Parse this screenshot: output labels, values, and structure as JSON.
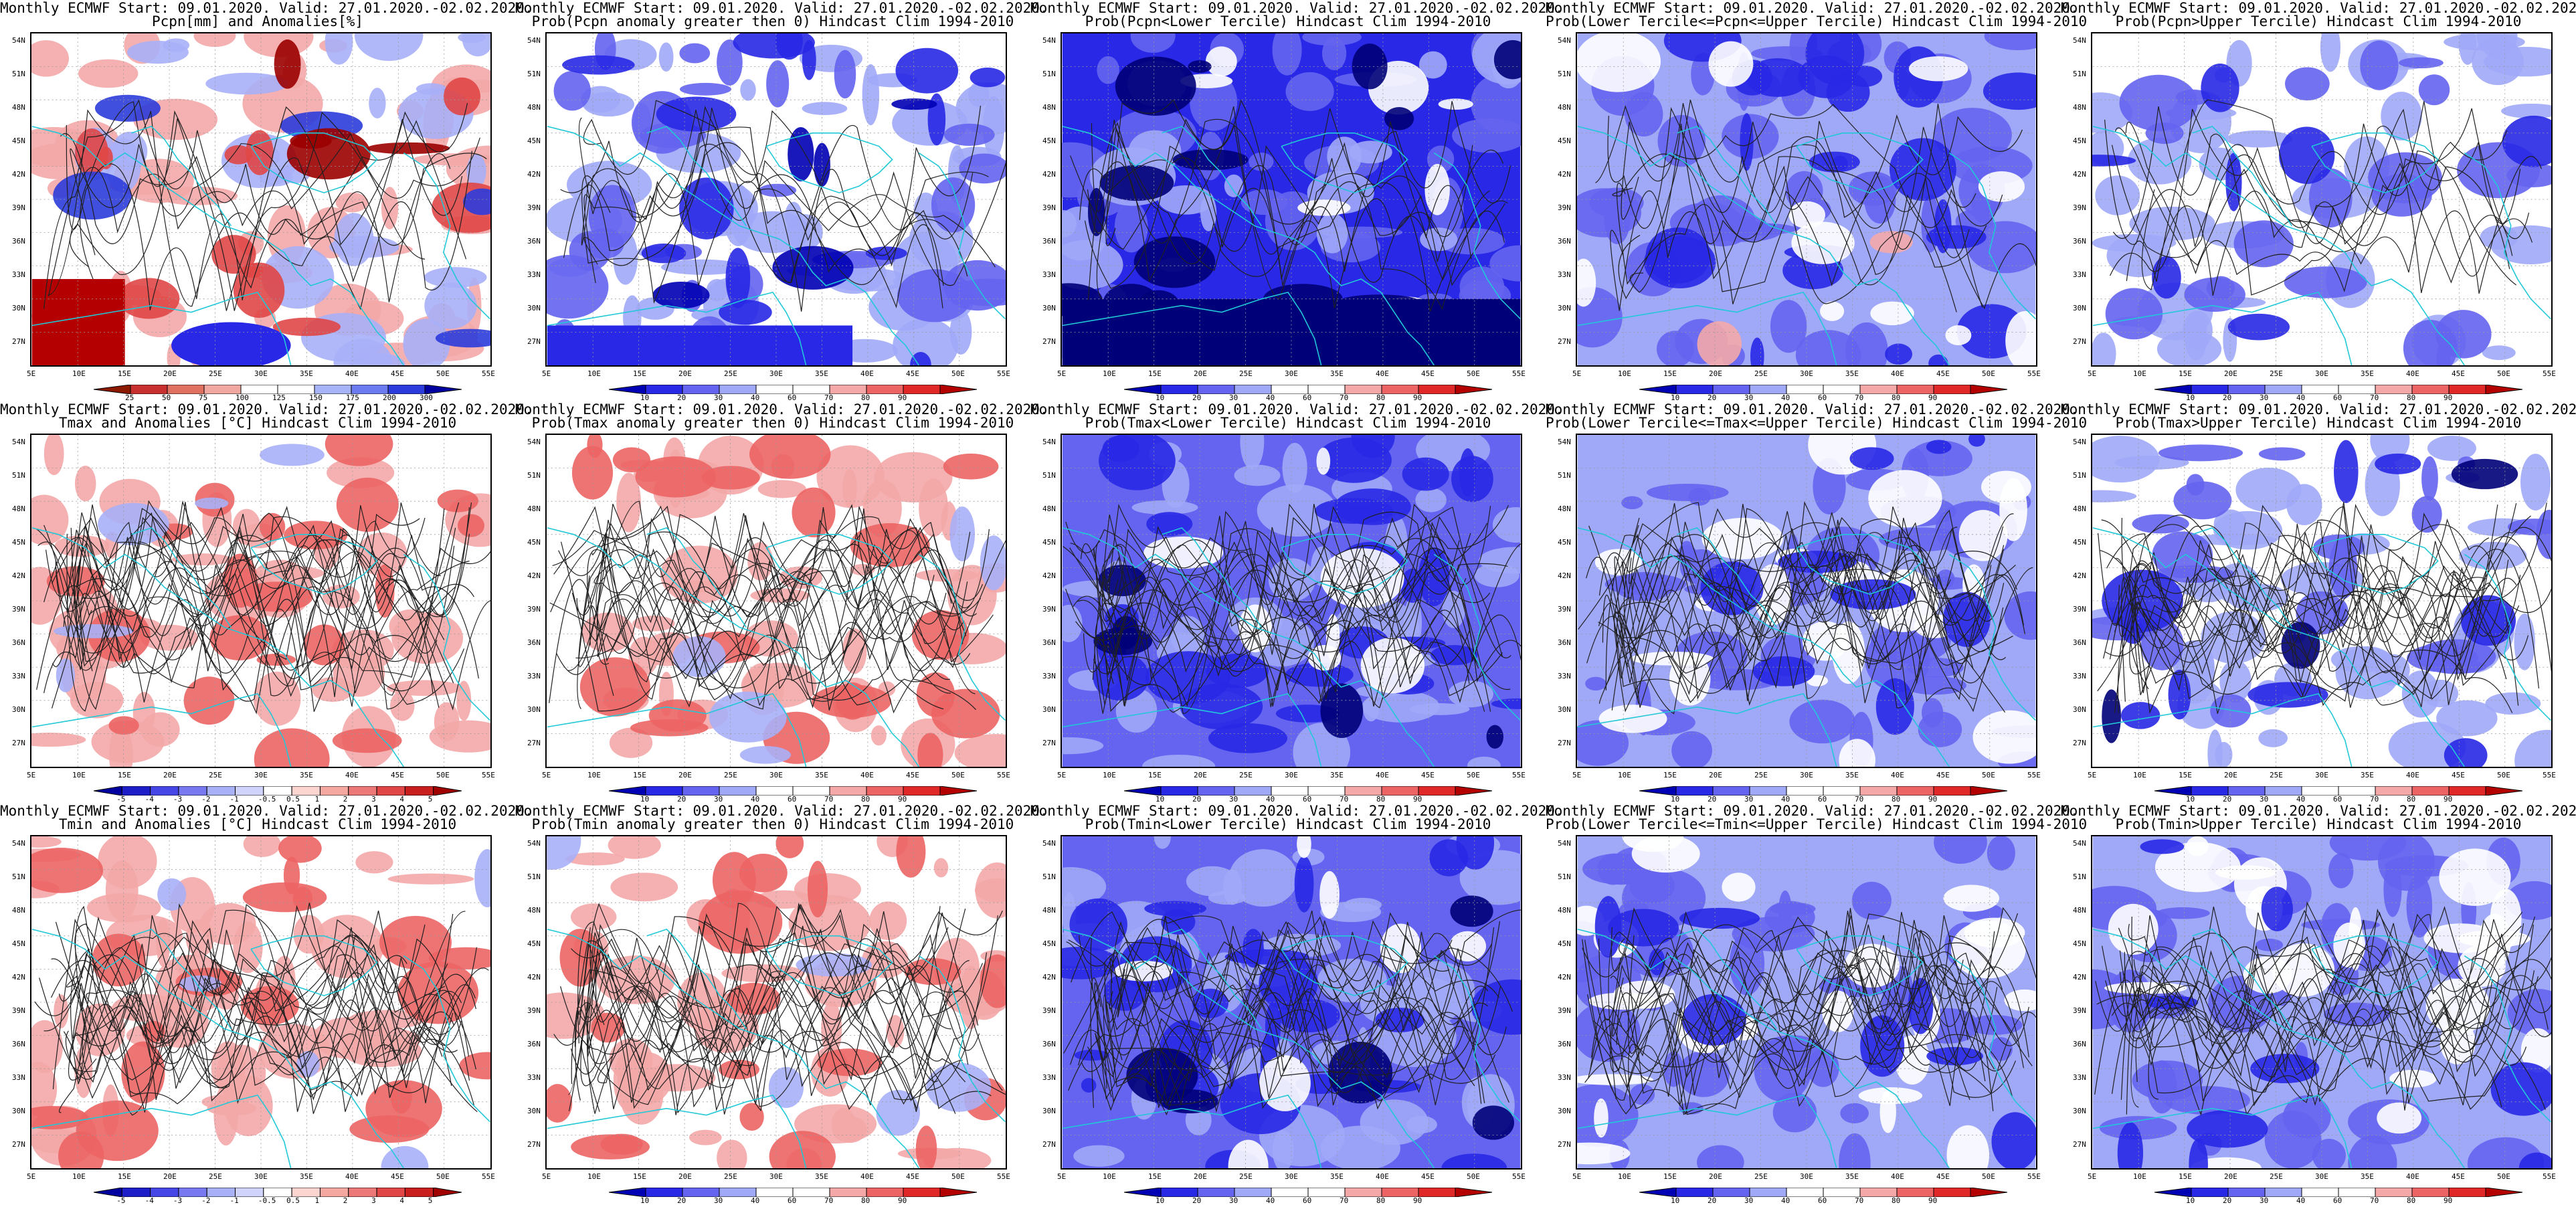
{
  "header_line": "Monthly ECMWF Start: 09.01.2020. Valid: 27.01.2020.-02.02.2020.",
  "lat_labels": [
    "54N",
    "51N",
    "48N",
    "45N",
    "42N",
    "39N",
    "36N",
    "33N",
    "30N",
    "27N"
  ],
  "lon_labels": [
    "5E",
    "10E",
    "15E",
    "20E",
    "25E",
    "30E",
    "35E",
    "40E",
    "45E",
    "50E",
    "55E"
  ],
  "colorbars": {
    "pcpn_anom": {
      "ticks": [
        "25",
        "50",
        "75",
        "100",
        "125",
        "150",
        "175",
        "200",
        "300"
      ],
      "colors": [
        "#8b1a00",
        "#c83030",
        "#e07060",
        "#f0a8a0",
        "#ffffff",
        "#ffffff",
        "#a8b4f8",
        "#6c7cf0",
        "#2c3cdc",
        "#0000a0"
      ]
    },
    "prob": {
      "ticks": [
        "10",
        "20",
        "30",
        "40",
        "60",
        "70",
        "80",
        "90"
      ],
      "colors": [
        "#0000b4",
        "#2828e6",
        "#6464f0",
        "#a0a8f8",
        "#ffffff",
        "#ffffff",
        "#f4a8a8",
        "#ec6464",
        "#e02828",
        "#b40000"
      ]
    },
    "temp_anom": {
      "ticks": [
        "-5",
        "-4",
        "-3",
        "-2",
        "-1",
        "-0.5",
        "0.5",
        "1",
        "2",
        "3",
        "4",
        "5"
      ],
      "colors": [
        "#0000a0",
        "#1e1ec8",
        "#4646e6",
        "#7878f0",
        "#a8b0f8",
        "#d0d4fc",
        "#ffffff",
        "#fcd4d0",
        "#f4a8a0",
        "#ec7878",
        "#e04646",
        "#c81e1e",
        "#a00000"
      ]
    }
  },
  "panels": [
    {
      "id": "p11",
      "line2": "Pcpn[mm] and Anomalies[%]",
      "cbar": "pcpn_anom",
      "theme": "pcpn"
    },
    {
      "id": "p12",
      "line2": "Prob(Pcpn anomaly greater then 0) Hindcast Clim 1994-2010",
      "cbar": "prob",
      "theme": "pcpn_pos"
    },
    {
      "id": "p13",
      "line2": "Prob(Pcpn<Lower Tercile) Hindcast Clim 1994-2010",
      "cbar": "prob",
      "theme": "pcpn_low"
    },
    {
      "id": "p14",
      "line2": "Prob(Lower Tercile<=Pcpn<=Upper Tercile) Hindcast Clim 1994-2010",
      "cbar": "prob",
      "theme": "pcpn_mid"
    },
    {
      "id": "p15",
      "line2": "Prob(Pcpn>Upper Tercile) Hindcast Clim 1994-2010",
      "cbar": "prob",
      "theme": "pcpn_up"
    },
    {
      "id": "p21",
      "line2": "Tmax and Anomalies [°C] Hindcast Clim 1994-2010",
      "cbar": "temp_anom",
      "theme": "warm"
    },
    {
      "id": "p22",
      "line2": "Prob(Tmax anomaly greater then 0) Hindcast Clim 1994-2010",
      "cbar": "prob",
      "theme": "warm"
    },
    {
      "id": "p23",
      "line2": "Prob(Tmax<Lower Tercile) Hindcast Clim 1994-2010",
      "cbar": "prob",
      "theme": "cold"
    },
    {
      "id": "p24",
      "line2": "Prob(Lower Tercile<=Tmax<=Upper Tercile) Hindcast Clim 1994-2010",
      "cbar": "prob",
      "theme": "mid"
    },
    {
      "id": "p25",
      "line2": "Prob(Tmax>Upper Tercile) Hindcast Clim 1994-2010",
      "cbar": "prob",
      "theme": "upper_t"
    },
    {
      "id": "p31",
      "line2": "Tmin and Anomalies [°C] Hindcast Clim 1994-2010",
      "cbar": "temp_anom",
      "theme": "warm"
    },
    {
      "id": "p32",
      "line2": "Prob(Tmin anomaly greater then 0) Hindcast Clim 1994-2010",
      "cbar": "prob",
      "theme": "warm"
    },
    {
      "id": "p33",
      "line2": "Prob(Tmin<Lower Tercile) Hindcast Clim 1994-2010",
      "cbar": "prob",
      "theme": "cold"
    },
    {
      "id": "p34",
      "line2": "Prob(Lower Tercile<=Tmin<=Upper Tercile) Hindcast Clim 1994-2010",
      "cbar": "prob",
      "theme": "mid"
    },
    {
      "id": "p35",
      "line2": "Prob(Tmin>Upper Tercile) Hindcast Clim 1994-2010",
      "cbar": "prob",
      "theme": "mid"
    }
  ]
}
